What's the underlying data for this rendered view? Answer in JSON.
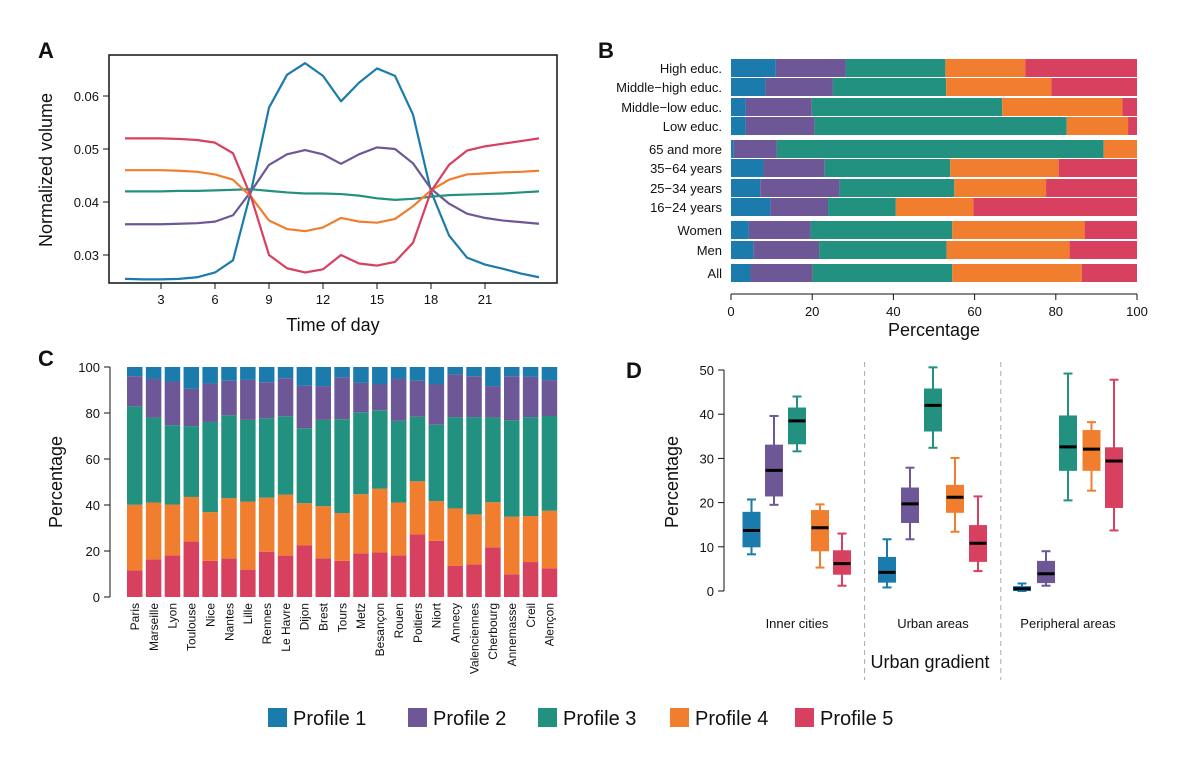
{
  "colors": [
    "#1b7bac",
    "#6e5797",
    "#22917f",
    "#f07e2e",
    "#d8405f"
  ],
  "legend": [
    "Profile 1",
    "Profile 2",
    "Profile 3",
    "Profile 4",
    "Profile 5"
  ],
  "chart_data": [
    {
      "panel": "A",
      "type": "line",
      "xlabel": "Time of day",
      "ylabel": "Normalized volume",
      "xticks": [
        "3",
        "6",
        "9",
        "12",
        "15",
        "18",
        "21"
      ],
      "yticks": [
        "0.03",
        "0.04",
        "0.05",
        "0.06"
      ],
      "x": [
        1,
        2,
        3,
        4,
        5,
        6,
        7,
        8,
        9,
        10,
        11,
        12,
        13,
        14,
        15,
        16,
        17,
        18,
        19,
        20,
        21,
        22,
        23,
        24
      ],
      "series": [
        {
          "name": "Profile 1",
          "values": [
            0.0255,
            0.0254,
            0.0254,
            0.0255,
            0.0258,
            0.0267,
            0.029,
            0.042,
            0.0578,
            0.064,
            0.0662,
            0.0638,
            0.059,
            0.0625,
            0.0652,
            0.0638,
            0.0565,
            0.042,
            0.0337,
            0.0295,
            0.0282,
            0.0274,
            0.0265,
            0.0258
          ]
        },
        {
          "name": "Profile 2",
          "values": [
            0.0358,
            0.0358,
            0.0358,
            0.0359,
            0.036,
            0.0363,
            0.0375,
            0.042,
            0.047,
            0.049,
            0.0498,
            0.049,
            0.0472,
            0.049,
            0.0503,
            0.05,
            0.0473,
            0.0425,
            0.0397,
            0.0378,
            0.037,
            0.0365,
            0.0362,
            0.0359
          ]
        },
        {
          "name": "Profile 3",
          "values": [
            0.042,
            0.042,
            0.042,
            0.0421,
            0.0421,
            0.0422,
            0.0423,
            0.0424,
            0.0421,
            0.0418,
            0.0416,
            0.0416,
            0.0415,
            0.0412,
            0.0407,
            0.0404,
            0.0406,
            0.041,
            0.0413,
            0.0414,
            0.0415,
            0.0416,
            0.0418,
            0.042
          ]
        },
        {
          "name": "Profile 4",
          "values": [
            0.046,
            0.046,
            0.046,
            0.0459,
            0.0457,
            0.0452,
            0.0442,
            0.041,
            0.0365,
            0.0349,
            0.0345,
            0.0352,
            0.037,
            0.0363,
            0.0361,
            0.0368,
            0.0392,
            0.0422,
            0.0442,
            0.0452,
            0.0454,
            0.0456,
            0.0457,
            0.0459
          ]
        },
        {
          "name": "Profile 5",
          "values": [
            0.052,
            0.052,
            0.052,
            0.0519,
            0.0517,
            0.0512,
            0.0492,
            0.041,
            0.03,
            0.0275,
            0.0267,
            0.0273,
            0.03,
            0.0284,
            0.028,
            0.0287,
            0.0323,
            0.042,
            0.047,
            0.0497,
            0.0505,
            0.051,
            0.0515,
            0.052
          ]
        }
      ],
      "xlim": [
        0,
        24
      ],
      "ylim": [
        0.024,
        0.068
      ]
    },
    {
      "panel": "B",
      "type": "bar",
      "orientation": "horizontal-stacked",
      "xlabel": "Percentage",
      "xticks": [
        "0",
        "20",
        "40",
        "60",
        "80",
        "100"
      ],
      "xlim": [
        0,
        100
      ],
      "categories": [
        "High educ.",
        "Middle−high educ.",
        "Middle−low educ.",
        "Low educ.",
        "65 and more",
        "35−64 years",
        "25−34 years",
        "16−24 years",
        "Women",
        "Men",
        "All"
      ],
      "values": [
        [
          11.0,
          17.3,
          24.5,
          19.7,
          27.5
        ],
        [
          8.4,
          16.7,
          27.9,
          25.9,
          21.1
        ],
        [
          3.6,
          16.3,
          46.9,
          29.6,
          3.6
        ],
        [
          3.6,
          17.0,
          62.1,
          15.1,
          2.2
        ],
        [
          0.7,
          10.6,
          80.5,
          8.2,
          0.0
        ],
        [
          8.0,
          15.1,
          30.9,
          26.7,
          19.3
        ],
        [
          7.2,
          19.5,
          28.3,
          22.6,
          22.4
        ],
        [
          9.7,
          14.2,
          16.7,
          19.1,
          40.3
        ],
        [
          4.4,
          15.2,
          34.9,
          32.6,
          12.9
        ],
        [
          5.5,
          16.2,
          31.4,
          30.3,
          16.6
        ],
        [
          4.8,
          15.3,
          34.4,
          31.9,
          13.6
        ]
      ]
    },
    {
      "panel": "C",
      "type": "bar",
      "orientation": "vertical-stacked",
      "ylabel": "Percentage",
      "yticks": [
        "0",
        "20",
        "40",
        "60",
        "80",
        "100"
      ],
      "ylim": [
        0,
        100
      ],
      "categories": [
        "Paris",
        "Marseille",
        "Lyon",
        "Toulouse",
        "Nice",
        "Nantes",
        "Lille",
        "Rennes",
        "Le Havre",
        "Dijon",
        "Brest",
        "Tours",
        "Metz",
        "Besançon",
        "Rouen",
        "Poitiers",
        "Niort",
        "Annecy",
        "Valenciennes",
        "Cherbourg",
        "Annemasse",
        "Creil",
        "Alençon"
      ],
      "values": [
        [
          4.0,
          13.1,
          42.8,
          28.6,
          11.5
        ],
        [
          5.2,
          16.8,
          36.9,
          24.7,
          16.4
        ],
        [
          6.3,
          19.0,
          34.5,
          22.1,
          18.1
        ],
        [
          9.5,
          16.2,
          30.8,
          19.4,
          24.1
        ],
        [
          7.2,
          16.7,
          39.2,
          21.2,
          15.7
        ],
        [
          6.0,
          15.0,
          36.0,
          26.3,
          16.7
        ],
        [
          5.6,
          17.4,
          35.5,
          29.6,
          11.9
        ],
        [
          6.6,
          15.7,
          34.5,
          23.5,
          19.7
        ],
        [
          4.9,
          16.5,
          34.1,
          26.5,
          18.0
        ],
        [
          8.2,
          18.4,
          32.6,
          18.4,
          22.4
        ],
        [
          8.3,
          14.7,
          37.5,
          22.7,
          16.8
        ],
        [
          4.5,
          18.2,
          40.8,
          20.8,
          15.7
        ],
        [
          6.9,
          12.8,
          35.6,
          25.7,
          19.0
        ],
        [
          7.6,
          11.2,
          34.1,
          27.7,
          19.4
        ],
        [
          5.2,
          18.2,
          35.5,
          23.0,
          18.1
        ],
        [
          6.0,
          15.6,
          28.1,
          23.1,
          27.2
        ],
        [
          7.6,
          17.5,
          33.2,
          17.3,
          24.4
        ],
        [
          3.2,
          18.6,
          39.7,
          25.0,
          13.5
        ],
        [
          4.0,
          17.8,
          42.3,
          21.7,
          14.2
        ],
        [
          8.3,
          13.7,
          36.8,
          19.6,
          21.6
        ],
        [
          4.0,
          19.1,
          42.0,
          25.0,
          9.9
        ],
        [
          4.3,
          17.5,
          43.0,
          20.0,
          15.2
        ],
        [
          5.7,
          15.6,
          41.2,
          25.0,
          12.5
        ]
      ]
    },
    {
      "panel": "D",
      "type": "box",
      "xlabel": "Urban gradient",
      "ylabel": "Percentage",
      "yticks": [
        "0",
        "10",
        "20",
        "30",
        "40",
        "50"
      ],
      "ylim": [
        0,
        50
      ],
      "groups": [
        {
          "label": "Inner cities",
          "boxes": [
            {
              "min": 8.3,
              "q1": 10.0,
              "median": 13.7,
              "q3": 17.8,
              "max": 20.7
            },
            {
              "min": 19.5,
              "q1": 21.5,
              "median": 27.3,
              "q3": 33.0,
              "max": 39.6
            },
            {
              "min": 31.6,
              "q1": 33.3,
              "median": 38.5,
              "q3": 41.4,
              "max": 44.0
            },
            {
              "min": 5.3,
              "q1": 9.1,
              "median": 14.3,
              "q3": 18.2,
              "max": 19.6
            },
            {
              "min": 1.2,
              "q1": 3.8,
              "median": 6.2,
              "q3": 9.1,
              "max": 13.0
            }
          ]
        },
        {
          "label": "Urban areas",
          "boxes": [
            {
              "min": 0.8,
              "q1": 2.0,
              "median": 4.2,
              "q3": 7.6,
              "max": 11.7
            },
            {
              "min": 11.7,
              "q1": 15.5,
              "median": 19.7,
              "q3": 23.3,
              "max": 27.9
            },
            {
              "min": 32.4,
              "q1": 36.2,
              "median": 42.0,
              "q3": 45.7,
              "max": 50.6
            },
            {
              "min": 13.4,
              "q1": 17.8,
              "median": 21.2,
              "q3": 23.9,
              "max": 30.1
            },
            {
              "min": 4.5,
              "q1": 6.7,
              "median": 10.8,
              "q3": 14.8,
              "max": 21.4
            }
          ]
        },
        {
          "label": "Peripheral areas",
          "boxes": [
            {
              "min": 0.0,
              "q1": 0.1,
              "median": 0.5,
              "q3": 1.0,
              "max": 1.7
            },
            {
              "min": 1.2,
              "q1": 1.9,
              "median": 3.9,
              "q3": 6.7,
              "max": 9.0
            },
            {
              "min": 20.5,
              "q1": 27.3,
              "median": 32.6,
              "q3": 39.6,
              "max": 49.2
            },
            {
              "min": 22.7,
              "q1": 27.3,
              "median": 32.1,
              "q3": 36.3,
              "max": 38.2
            },
            {
              "min": 13.7,
              "q1": 18.9,
              "median": 29.4,
              "q3": 32.4,
              "max": 47.8
            }
          ]
        }
      ]
    }
  ],
  "panel_letters": [
    "A",
    "B",
    "C",
    "D"
  ]
}
